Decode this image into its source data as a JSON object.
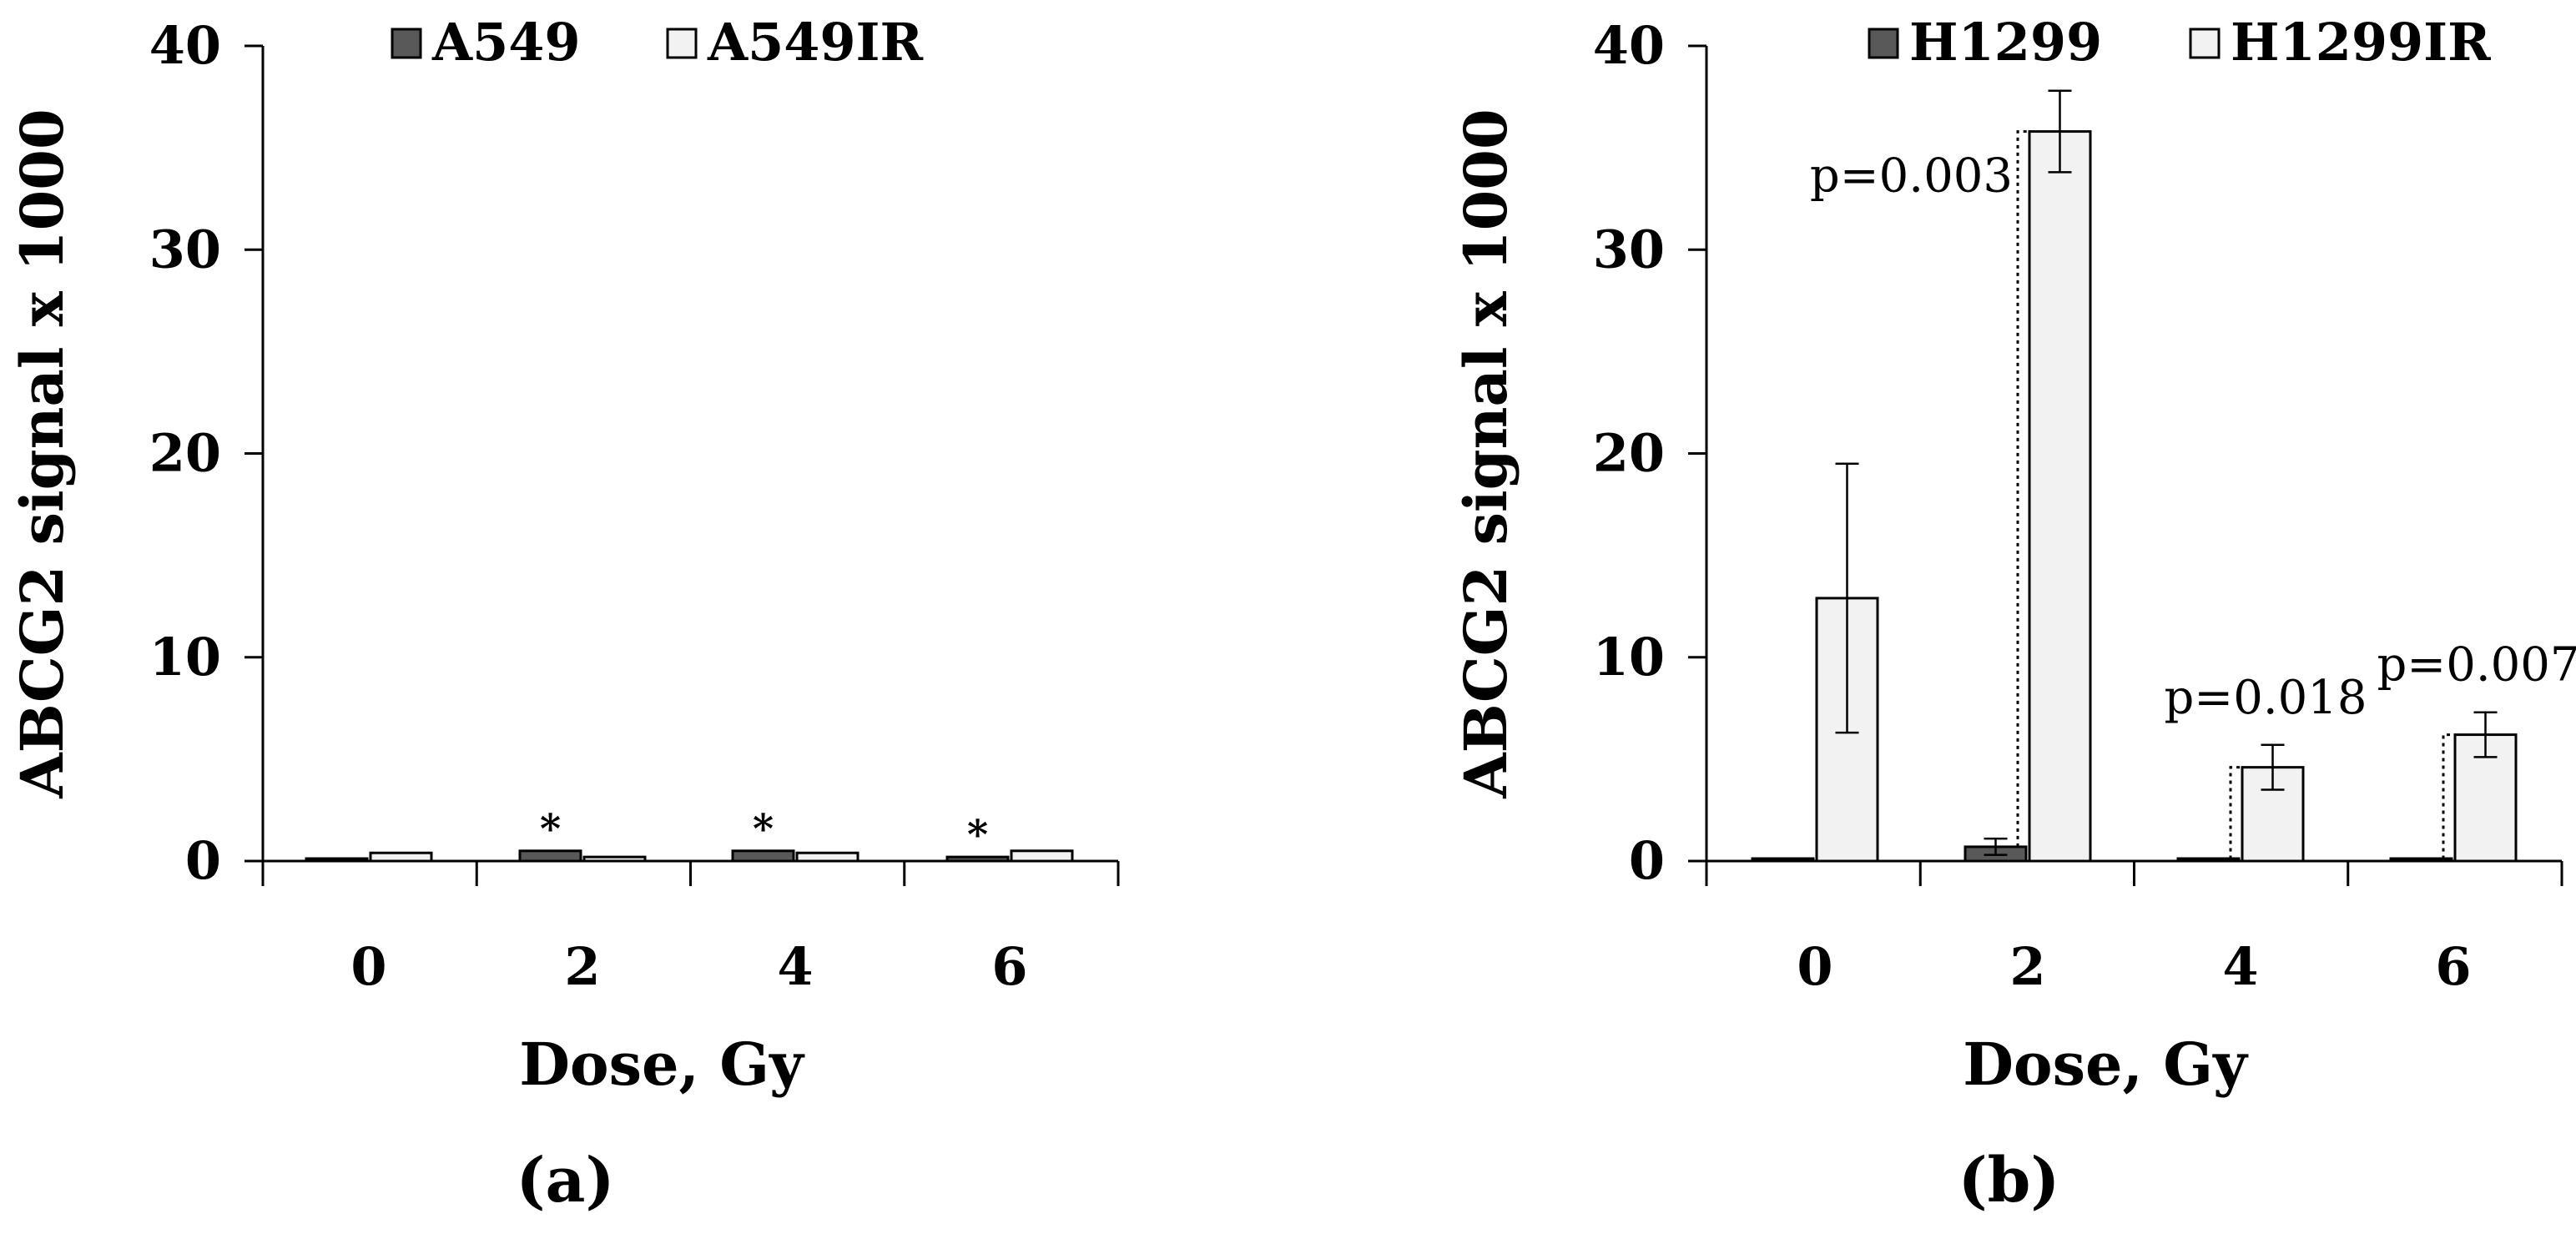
{
  "chart_data": [
    {
      "type": "bar",
      "panel_label": "(a)",
      "categories": [
        "0",
        "2",
        "4",
        "6"
      ],
      "xlabel": "Dose, Gy",
      "ylabel": "ABCG2 signal x 1000",
      "ylim": [
        0,
        40
      ],
      "yticks": [
        "0",
        "10",
        "20",
        "30",
        "40"
      ],
      "grid": false,
      "legend_position": "top",
      "series": [
        {
          "name": "A549",
          "color": "#595959",
          "values": [
            0.1,
            0.5,
            0.5,
            0.2
          ],
          "errors": [
            0,
            0,
            0,
            0
          ]
        },
        {
          "name": "A549IR",
          "color": "#f2f2f2",
          "values": [
            0.4,
            0.2,
            0.4,
            0.5
          ],
          "errors": [
            0,
            0,
            0,
            0
          ]
        }
      ],
      "annotations": [
        {
          "category": 1,
          "series": 0,
          "text": "*"
        },
        {
          "category": 2,
          "series": 0,
          "text": "*"
        },
        {
          "category": 3,
          "series": 0,
          "text": "*"
        }
      ],
      "pvalues": []
    },
    {
      "type": "bar",
      "panel_label": "(b)",
      "categories": [
        "0",
        "2",
        "4",
        "6"
      ],
      "xlabel": "Dose, Gy",
      "ylabel": "ABCG2 signal x 1000",
      "ylim": [
        0,
        40
      ],
      "yticks": [
        "0",
        "10",
        "20",
        "30",
        "40"
      ],
      "grid": false,
      "legend_position": "top",
      "series": [
        {
          "name": "H1299",
          "color": "#595959",
          "values": [
            0.1,
            0.7,
            0.1,
            0.1
          ],
          "errors": [
            0,
            0.4,
            0,
            0
          ]
        },
        {
          "name": "H1299IR",
          "color": "#f2f2f2",
          "values": [
            12.9,
            35.8,
            4.6,
            6.2
          ],
          "errors": [
            6.6,
            2.0,
            1.1,
            1.1
          ]
        }
      ],
      "annotations": [],
      "pvalues": [
        {
          "category": 1,
          "text": "p=0.003"
        },
        {
          "category": 2,
          "text": "p=0.018"
        },
        {
          "category": 3,
          "text": "p=0.007"
        }
      ]
    }
  ]
}
